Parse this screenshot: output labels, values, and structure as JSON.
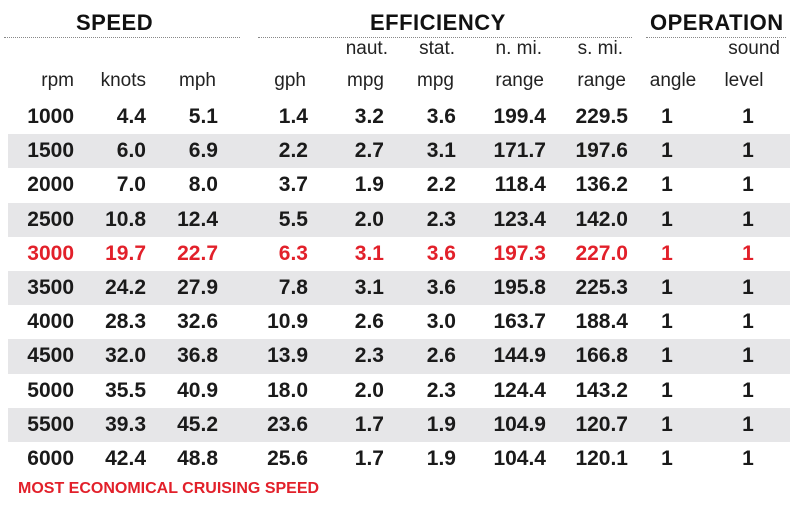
{
  "groups": {
    "speed": "SPEED",
    "efficiency": "EFFICIENCY",
    "operation": "OPERATION"
  },
  "headers": {
    "rpm": "rpm",
    "knots": "knots",
    "mph": "mph",
    "gph": "gph",
    "naut_top": "naut.",
    "naut_bottom": "mpg",
    "stat_top": "stat.",
    "stat_bottom": "mpg",
    "nmi_top": "n. mi.",
    "nmi_bottom": "range",
    "smi_top": "s. mi.",
    "smi_bottom": "range",
    "angle": "angle",
    "sound_top": "sound",
    "sound_bottom": "level"
  },
  "rows": [
    {
      "rpm": "1000",
      "knots": "4.4",
      "mph": "5.1",
      "gph": "1.4",
      "naut_mpg": "3.2",
      "stat_mpg": "3.6",
      "nmi_range": "199.4",
      "smi_range": "229.5",
      "angle": "1",
      "sound": "1"
    },
    {
      "rpm": "1500",
      "knots": "6.0",
      "mph": "6.9",
      "gph": "2.2",
      "naut_mpg": "2.7",
      "stat_mpg": "3.1",
      "nmi_range": "171.7",
      "smi_range": "197.6",
      "angle": "1",
      "sound": "1"
    },
    {
      "rpm": "2000",
      "knots": "7.0",
      "mph": "8.0",
      "gph": "3.7",
      "naut_mpg": "1.9",
      "stat_mpg": "2.2",
      "nmi_range": "118.4",
      "smi_range": "136.2",
      "angle": "1",
      "sound": "1"
    },
    {
      "rpm": "2500",
      "knots": "10.8",
      "mph": "12.4",
      "gph": "5.5",
      "naut_mpg": "2.0",
      "stat_mpg": "2.3",
      "nmi_range": "123.4",
      "smi_range": "142.0",
      "angle": "1",
      "sound": "1"
    },
    {
      "rpm": "3000",
      "knots": "19.7",
      "mph": "22.7",
      "gph": "6.3",
      "naut_mpg": "3.1",
      "stat_mpg": "3.6",
      "nmi_range": "197.3",
      "smi_range": "227.0",
      "angle": "1",
      "sound": "1"
    },
    {
      "rpm": "3500",
      "knots": "24.2",
      "mph": "27.9",
      "gph": "7.8",
      "naut_mpg": "3.1",
      "stat_mpg": "3.6",
      "nmi_range": "195.8",
      "smi_range": "225.3",
      "angle": "1",
      "sound": "1"
    },
    {
      "rpm": "4000",
      "knots": "28.3",
      "mph": "32.6",
      "gph": "10.9",
      "naut_mpg": "2.6",
      "stat_mpg": "3.0",
      "nmi_range": "163.7",
      "smi_range": "188.4",
      "angle": "1",
      "sound": "1"
    },
    {
      "rpm": "4500",
      "knots": "32.0",
      "mph": "36.8",
      "gph": "13.9",
      "naut_mpg": "2.3",
      "stat_mpg": "2.6",
      "nmi_range": "144.9",
      "smi_range": "166.8",
      "angle": "1",
      "sound": "1"
    },
    {
      "rpm": "5000",
      "knots": "35.5",
      "mph": "40.9",
      "gph": "18.0",
      "naut_mpg": "2.0",
      "stat_mpg": "2.3",
      "nmi_range": "124.4",
      "smi_range": "143.2",
      "angle": "1",
      "sound": "1"
    },
    {
      "rpm": "5500",
      "knots": "39.3",
      "mph": "45.2",
      "gph": "23.6",
      "naut_mpg": "1.7",
      "stat_mpg": "1.9",
      "nmi_range": "104.9",
      "smi_range": "120.7",
      "angle": "1",
      "sound": "1"
    },
    {
      "rpm": "6000",
      "knots": "42.4",
      "mph": "48.8",
      "gph": "25.6",
      "naut_mpg": "1.7",
      "stat_mpg": "1.9",
      "nmi_range": "104.4",
      "smi_range": "120.1",
      "angle": "1",
      "sound": "1"
    }
  ],
  "highlight_row": "3000",
  "footnote": "MOST ECONOMICAL CRUISING SPEED",
  "colors": {
    "highlight": "#e2202a",
    "row_shade": "#e6e6e8",
    "text": "#1a1a1a"
  }
}
